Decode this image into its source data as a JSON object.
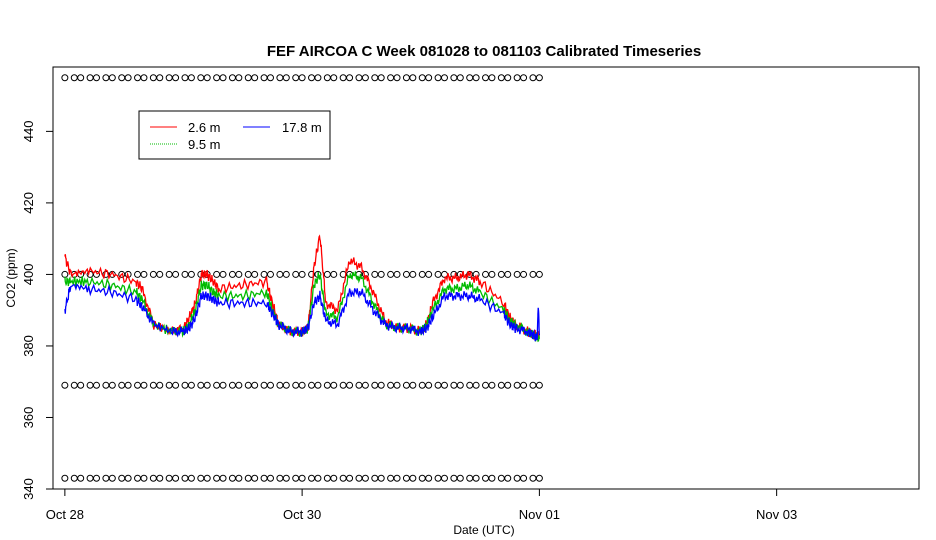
{
  "chart_data": {
    "type": "line",
    "title": "FEF AIRCOA C  Week 081028 to 081103  Calibrated Timeseries",
    "xlabel": "Date (UTC)",
    "ylabel": "CO2 (ppm)",
    "xlim": [
      -0.1,
      7.2
    ],
    "ylim": [
      340,
      458
    ],
    "x_ticks": [
      {
        "x": 0,
        "label": "Oct 28"
      },
      {
        "x": 2,
        "label": "Oct 30"
      },
      {
        "x": 4,
        "label": "Nov 01"
      },
      {
        "x": 6,
        "label": "Nov 03"
      }
    ],
    "y_ticks": [
      340,
      360,
      380,
      400,
      420,
      440
    ],
    "x_units": "days since Oct 28 00:00 UTC",
    "legend_position": "top-left",
    "series": [
      {
        "name": "2.6 m",
        "color": "#ff0000",
        "x": [
          0.0,
          0.05,
          0.2,
          0.4,
          0.6,
          0.65,
          0.75,
          0.9,
          1.0,
          1.05,
          1.1,
          1.15,
          1.2,
          1.25,
          1.3,
          1.5,
          1.7,
          1.75,
          1.8,
          1.9,
          2.0,
          2.05,
          2.1,
          2.15,
          2.2,
          2.3,
          2.4,
          2.5,
          2.6,
          2.7,
          2.8,
          2.9,
          3.0,
          3.05,
          3.1,
          3.2,
          3.3,
          3.4,
          3.5,
          3.7,
          3.75,
          3.8,
          3.9,
          3.95,
          4.0
        ],
        "y": [
          405,
          400,
          401,
          400,
          398,
          396,
          386,
          384,
          385,
          388,
          392,
          400,
          400,
          398,
          396,
          397,
          398,
          392,
          386,
          384,
          384,
          385,
          402,
          411,
          392,
          390,
          404,
          402,
          395,
          387,
          385,
          385,
          384,
          386,
          392,
          399,
          399,
          400,
          398,
          392,
          388,
          386,
          384,
          383,
          383
        ]
      },
      {
        "name": "9.5 m",
        "color": "#00bb00",
        "x": [
          0.0,
          0.05,
          0.2,
          0.4,
          0.6,
          0.65,
          0.75,
          0.9,
          1.0,
          1.05,
          1.1,
          1.15,
          1.2,
          1.25,
          1.3,
          1.5,
          1.7,
          1.75,
          1.8,
          1.9,
          2.0,
          2.05,
          2.1,
          2.15,
          2.2,
          2.3,
          2.4,
          2.5,
          2.6,
          2.7,
          2.8,
          2.9,
          3.0,
          3.05,
          3.1,
          3.2,
          3.3,
          3.4,
          3.5,
          3.7,
          3.75,
          3.8,
          3.9,
          3.95,
          4.0
        ],
        "y": [
          398,
          398,
          398,
          397,
          395,
          393,
          386,
          384,
          384,
          386,
          390,
          397,
          397,
          395,
          394,
          394,
          395,
          390,
          386,
          384,
          384,
          385,
          397,
          400,
          389,
          388,
          400,
          399,
          392,
          386,
          385,
          385,
          384,
          386,
          390,
          396,
          396,
          397,
          395,
          390,
          387,
          386,
          384,
          383,
          382
        ]
      },
      {
        "name": "17.8 m",
        "color": "#0000ff",
        "x": [
          0.0,
          0.05,
          0.2,
          0.4,
          0.6,
          0.65,
          0.75,
          0.9,
          1.0,
          1.05,
          1.1,
          1.15,
          1.2,
          1.25,
          1.3,
          1.5,
          1.7,
          1.75,
          1.8,
          1.9,
          2.0,
          2.05,
          2.1,
          2.15,
          2.2,
          2.3,
          2.4,
          2.5,
          2.6,
          2.7,
          2.8,
          2.9,
          3.0,
          3.05,
          3.1,
          3.2,
          3.3,
          3.4,
          3.5,
          3.7,
          3.75,
          3.8,
          3.9,
          3.95,
          3.98,
          3.99,
          4.0
        ],
        "y": [
          390,
          397,
          396,
          395,
          393,
          391,
          386,
          384,
          384,
          385,
          388,
          394,
          394,
          393,
          392,
          392,
          392,
          389,
          386,
          384,
          384,
          385,
          392,
          394,
          387,
          386,
          395,
          395,
          390,
          386,
          385,
          385,
          384,
          385,
          388,
          394,
          394,
          394,
          393,
          389,
          386,
          385,
          384,
          383,
          382,
          391,
          383
        ]
      }
    ],
    "reference_markers": {
      "symbol": "circle",
      "levels": [
        455,
        400,
        369,
        343
      ],
      "x_range": [
        0,
        4
      ]
    }
  }
}
